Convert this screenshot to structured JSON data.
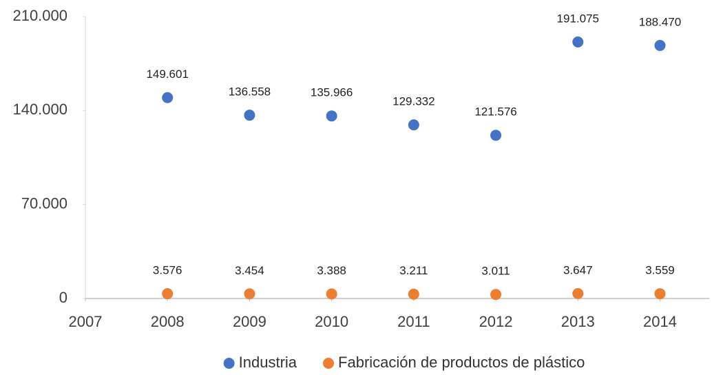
{
  "chart_data": {
    "type": "scatter",
    "x": [
      2008,
      2009,
      2010,
      2011,
      2012,
      2013,
      2014
    ],
    "series": [
      {
        "name": "Industria",
        "color": "#4472c4",
        "values": [
          149601,
          136558,
          135966,
          129332,
          121576,
          191075,
          188470
        ],
        "value_labels": [
          "149.601",
          "136.558",
          "135.966",
          "129.332",
          "121.576",
          "191.075",
          "188.470"
        ]
      },
      {
        "name": "Fabricación de productos de plástico",
        "color": "#ed7d31",
        "values": [
          3576,
          3454,
          3388,
          3211,
          3011,
          3647,
          3559
        ],
        "value_labels": [
          "3.576",
          "3.454",
          "3.388",
          "3.211",
          "3.011",
          "3.647",
          "3.559"
        ]
      }
    ],
    "xlim": [
      2007,
      2014.6
    ],
    "xticks": [
      2007,
      2008,
      2009,
      2010,
      2011,
      2012,
      2013,
      2014
    ],
    "ylim": [
      0,
      210000
    ],
    "yticks": [
      0,
      {
        "value": 70000,
        "label": "70.000"
      },
      {
        "value": 140000,
        "label": "140.000"
      },
      {
        "value": 210000,
        "label": "210.000"
      }
    ],
    "legend": "bottom"
  }
}
